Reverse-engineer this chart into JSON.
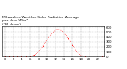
{
  "title": "Milwaukee Weather Solar Radiation Average\nper Hour W/m²\n(24 Hours)",
  "hours": [
    0,
    1,
    2,
    3,
    4,
    5,
    6,
    7,
    8,
    9,
    10,
    11,
    12,
    13,
    14,
    15,
    16,
    17,
    18,
    19,
    20,
    21,
    22,
    23
  ],
  "values": [
    0,
    0,
    0,
    0,
    0,
    0,
    5,
    30,
    100,
    210,
    340,
    460,
    540,
    560,
    490,
    380,
    240,
    110,
    25,
    4,
    0,
    0,
    0,
    0
  ],
  "line_color": "#ff0000",
  "marker": ".",
  "linestyle": ":",
  "background_color": "#ffffff",
  "grid_color": "#888888",
  "title_fontsize": 3.2,
  "tick_fontsize": 2.8,
  "ylim": [
    0,
    620
  ],
  "xlim": [
    -0.5,
    23.5
  ],
  "yticks": [
    0,
    100,
    200,
    300,
    400,
    500,
    600
  ]
}
